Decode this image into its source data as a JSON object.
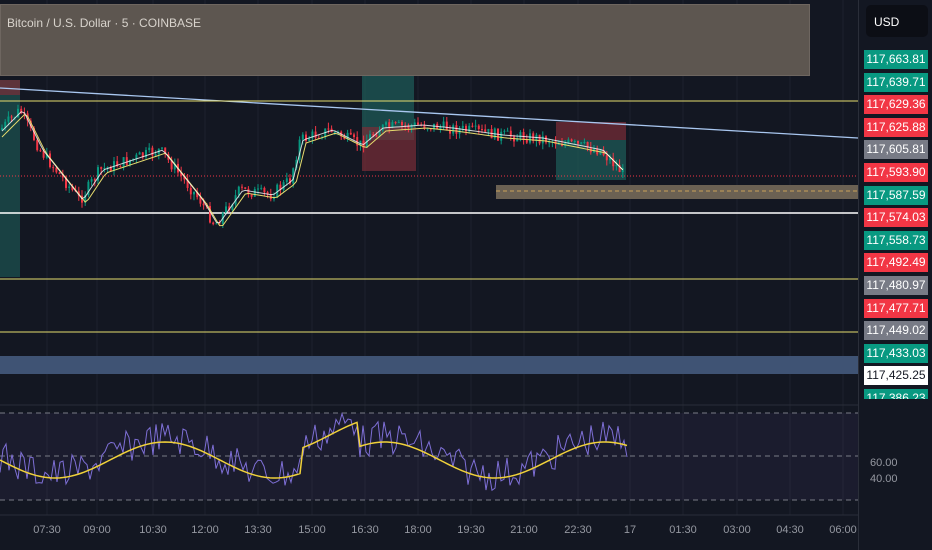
{
  "header": {
    "title": "Bitcoin / U.S. Dollar · 5 · COINBASE",
    "currency": "USD"
  },
  "price_labels": [
    {
      "text": "117,663.81",
      "color": "#089981"
    },
    {
      "text": "117,639.71",
      "color": "#089981"
    },
    {
      "text": "117,629.36",
      "color": "#f23645"
    },
    {
      "text": "117,625.88",
      "color": "#f23645"
    },
    {
      "text": "117,605.81",
      "color": "#787b86"
    },
    {
      "text": "117,593.90",
      "color": "#f23645"
    },
    {
      "text": "117,587.59",
      "color": "#089981"
    },
    {
      "text": "117,574.03",
      "color": "#f23645"
    },
    {
      "text": "117,558.73",
      "color": "#089981"
    },
    {
      "text": "117,492.49",
      "color": "#f23645"
    },
    {
      "text": "117,480.97",
      "color": "#787b86"
    },
    {
      "text": "117,477.71",
      "color": "#f23645"
    },
    {
      "text": "117,449.02",
      "color": "#787b86"
    },
    {
      "text": "117,433.03",
      "color": "#089981"
    },
    {
      "text": "117,425.25",
      "color": "#ffffff"
    },
    {
      "text": "117,386.23",
      "color": "#089981"
    }
  ],
  "rsi_labels": [
    "60.00",
    "40.00"
  ],
  "time_labels": [
    "07:30",
    "09:00",
    "10:30",
    "12:00",
    "13:30",
    "15:00",
    "16:30",
    "18:00",
    "19:30",
    "21:00",
    "22:30",
    "17",
    "01:30",
    "03:00",
    "04:30",
    "06:00"
  ]
}
